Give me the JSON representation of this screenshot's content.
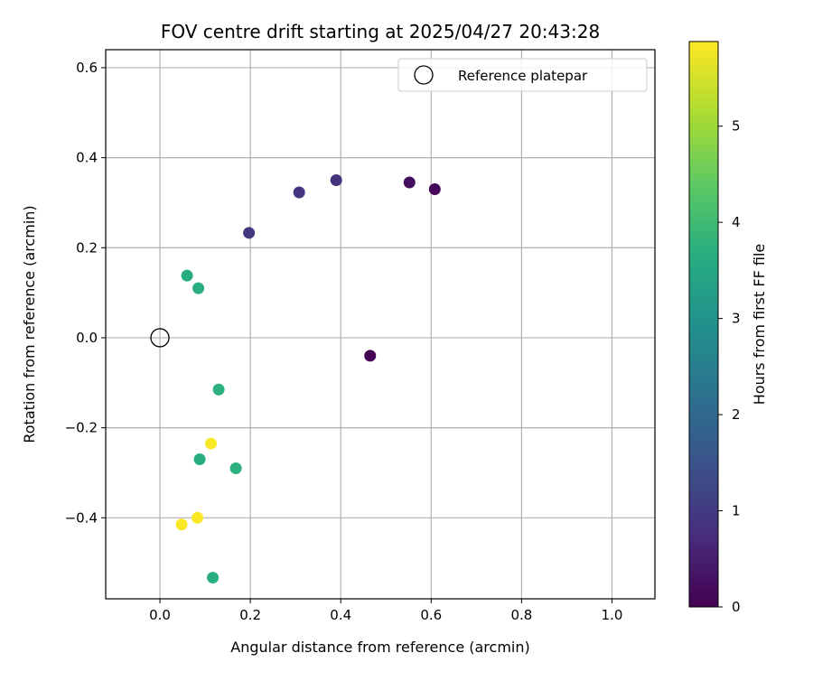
{
  "chart_data": {
    "type": "scatter",
    "title": "FOV centre drift starting at 2025/04/27 20:43:28",
    "xlabel": "Angular distance from reference (arcmin)",
    "ylabel": "Rotation from reference (arcmin)",
    "xlim": [
      -0.12,
      1.095
    ],
    "ylim": [
      -0.58,
      0.64
    ],
    "xticks": [
      "0.0",
      "0.2",
      "0.4",
      "0.6",
      "0.8",
      "1.0"
    ],
    "xtick_values": [
      0.0,
      0.2,
      0.4,
      0.6,
      0.8,
      1.0
    ],
    "yticks": [
      "−0.4",
      "−0.2",
      "0.0",
      "0.2",
      "0.4",
      "0.6"
    ],
    "ytick_values": [
      -0.4,
      -0.2,
      0.0,
      0.2,
      0.4,
      0.6
    ],
    "grid": true,
    "legend": {
      "position": "top-right",
      "label": "Reference platepar"
    },
    "reference_point": {
      "x": 0.0,
      "y": 0.0
    },
    "colorbar": {
      "label": "Hours from first FF file",
      "range": [
        0,
        5.88
      ],
      "ticks": [
        "0",
        "1",
        "2",
        "3",
        "4",
        "5"
      ],
      "tick_values": [
        0,
        1,
        2,
        3,
        4,
        5
      ],
      "colormap": "viridis"
    },
    "series": [
      {
        "points": [
          {
            "x": 0.465,
            "y": -0.04,
            "hours": 0.0
          },
          {
            "x": 0.608,
            "y": 0.33,
            "hours": 0.1
          },
          {
            "x": 0.552,
            "y": 0.345,
            "hours": 0.2
          },
          {
            "x": 0.39,
            "y": 0.35,
            "hours": 0.85
          },
          {
            "x": 0.308,
            "y": 0.323,
            "hours": 0.9
          },
          {
            "x": 0.197,
            "y": 0.233,
            "hours": 0.95
          },
          {
            "x": 0.06,
            "y": 0.138,
            "hours": 3.65
          },
          {
            "x": 0.085,
            "y": 0.11,
            "hours": 3.7
          },
          {
            "x": 0.13,
            "y": -0.115,
            "hours": 3.75
          },
          {
            "x": 0.088,
            "y": -0.27,
            "hours": 3.7
          },
          {
            "x": 0.168,
            "y": -0.29,
            "hours": 3.75
          },
          {
            "x": 0.117,
            "y": -0.533,
            "hours": 3.7
          },
          {
            "x": 0.113,
            "y": -0.235,
            "hours": 5.85
          },
          {
            "x": 0.083,
            "y": -0.4,
            "hours": 5.85
          },
          {
            "x": 0.048,
            "y": -0.415,
            "hours": 5.85
          }
        ]
      }
    ]
  }
}
